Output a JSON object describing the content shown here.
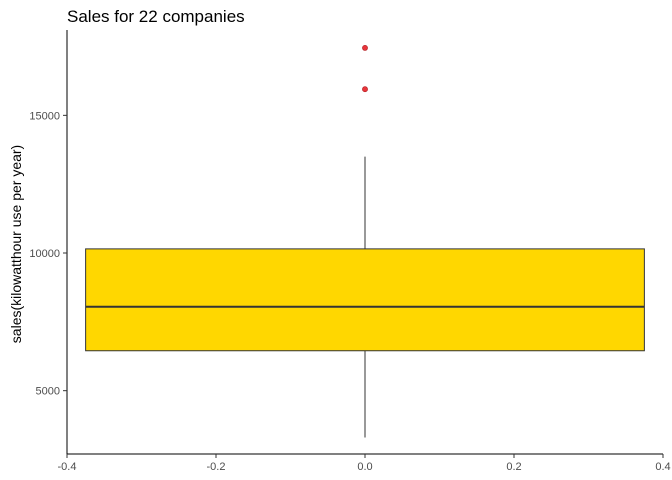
{
  "chart_data": {
    "type": "box",
    "title": "Sales for 22 companies",
    "xlabel": "",
    "ylabel": "sales(kilowatthour use per year)",
    "xlim": [
      -0.4,
      0.4
    ],
    "ylim": [
      2700,
      18100
    ],
    "x_ticks": [
      -0.4,
      -0.2,
      0.0,
      0.2,
      0.4
    ],
    "x_tick_labels": [
      "-0.4",
      "-0.2",
      "0.0",
      "0.2",
      "0.4"
    ],
    "y_ticks": [
      5000,
      10000,
      15000
    ],
    "y_tick_labels": [
      "5000",
      "10000",
      "15000"
    ],
    "grid": false,
    "box": {
      "x_center": 0.0,
      "x_min": -0.375,
      "x_max": 0.375,
      "whisker_low": 3300,
      "q1": 6450,
      "median": 8050,
      "q3": 10150,
      "whisker_high": 13500
    },
    "outliers": [
      {
        "x": 0.0,
        "y": 15950
      },
      {
        "x": 0.0,
        "y": 17450
      }
    ],
    "colors": {
      "box_fill": "#FFD700",
      "outline": "#333333",
      "outlier": "#E8353B"
    }
  }
}
